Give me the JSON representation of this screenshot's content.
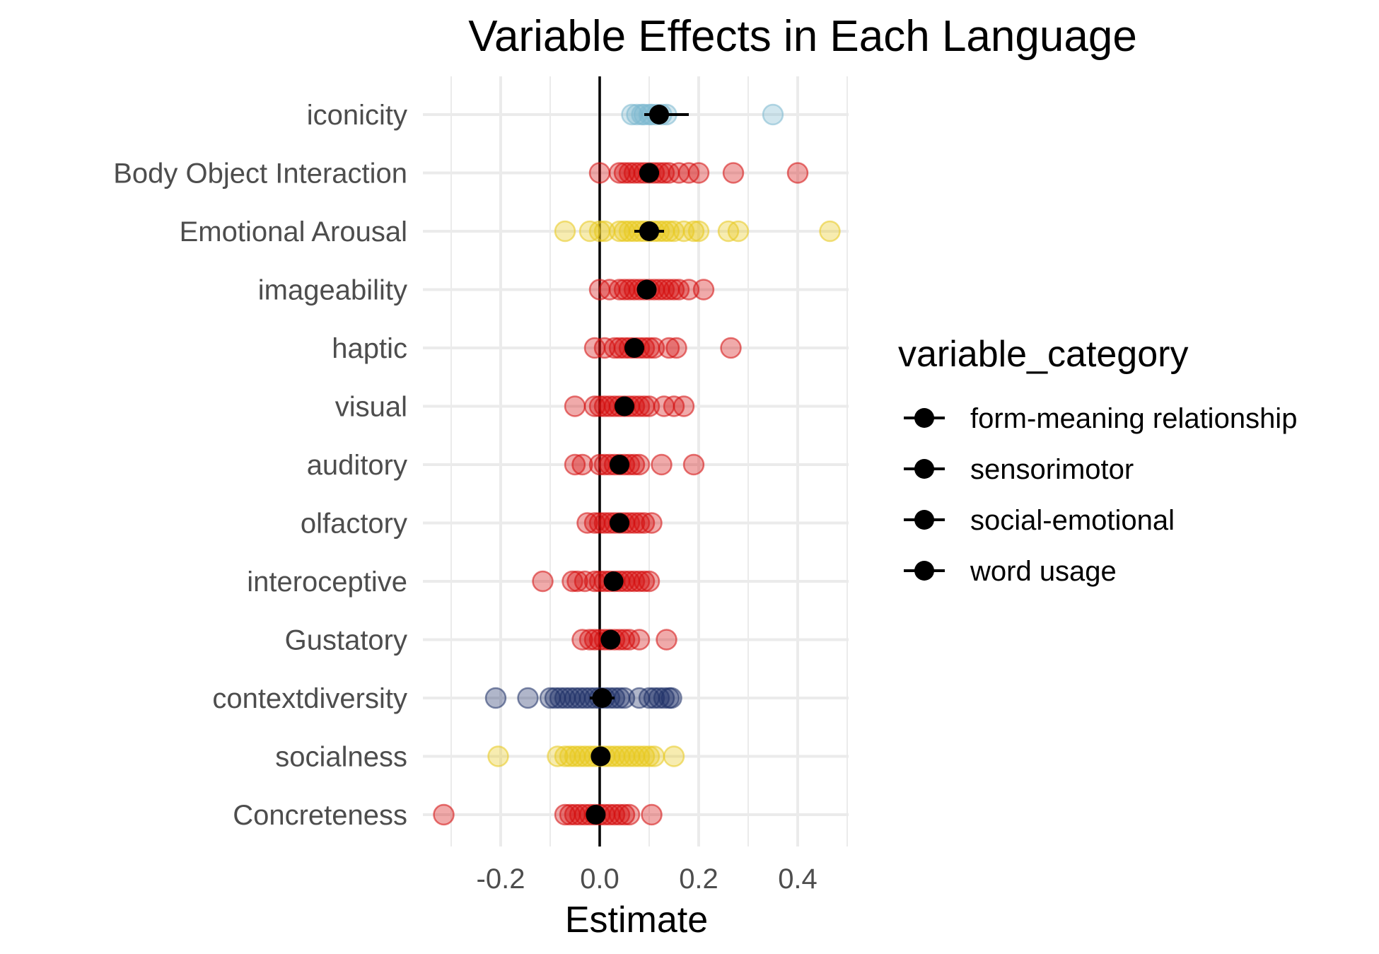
{
  "chart_data": {
    "type": "scatter",
    "title": "Variable Effects in Each Language",
    "xlabel": "Estimate",
    "ylabel": "",
    "xlim": [
      -0.34,
      0.5
    ],
    "x_ticks": [
      -0.2,
      0.0,
      0.2,
      0.4
    ],
    "x_tick_labels": [
      "-0.2",
      "0.0",
      "0.2",
      "0.4"
    ],
    "grid": true,
    "reference_line_x": 0,
    "legend": {
      "title": "variable_category",
      "placement": "right",
      "entries": [
        "form-meaning relationship",
        "sensorimotor",
        "social-emotional",
        "word usage"
      ]
    },
    "category_colors": {
      "form-meaning relationship": "#7bb8cf",
      "sensorimotor": "#d40b0b",
      "social-emotional": "#e8c91c",
      "word usage": "#1e2f66"
    },
    "summary_color": "#000000",
    "variables": [
      {
        "name": "iconicity",
        "category": "form-meaning relationship",
        "estimate": 0.12,
        "ci": [
          0.09,
          0.18
        ],
        "points": [
          0.065,
          0.075,
          0.085,
          0.09,
          0.1,
          0.105,
          0.115,
          0.125,
          0.135,
          0.35
        ]
      },
      {
        "name": "Body Object Interaction",
        "category": "sensorimotor",
        "estimate": 0.1,
        "ci": [
          0.08,
          0.12
        ],
        "points": [
          0.0,
          0.04,
          0.05,
          0.06,
          0.07,
          0.08,
          0.09,
          0.1,
          0.11,
          0.12,
          0.13,
          0.14,
          0.16,
          0.18,
          0.2,
          0.27,
          0.4
        ]
      },
      {
        "name": "Emotional Arousal",
        "category": "social-emotional",
        "estimate": 0.1,
        "ci": [
          0.07,
          0.13
        ],
        "points": [
          -0.07,
          -0.02,
          0.0,
          0.01,
          0.04,
          0.05,
          0.06,
          0.07,
          0.08,
          0.09,
          0.1,
          0.11,
          0.12,
          0.13,
          0.14,
          0.15,
          0.17,
          0.19,
          0.2,
          0.26,
          0.28,
          0.465
        ]
      },
      {
        "name": "imageability",
        "category": "sensorimotor",
        "estimate": 0.095,
        "ci": [
          0.08,
          0.11
        ],
        "points": [
          0.0,
          0.02,
          0.04,
          0.05,
          0.06,
          0.07,
          0.08,
          0.09,
          0.1,
          0.11,
          0.12,
          0.13,
          0.14,
          0.15,
          0.16,
          0.18,
          0.21
        ]
      },
      {
        "name": "haptic",
        "category": "sensorimotor",
        "estimate": 0.07,
        "ci": [
          0.055,
          0.09
        ],
        "points": [
          -0.01,
          0.01,
          0.03,
          0.04,
          0.05,
          0.06,
          0.07,
          0.08,
          0.09,
          0.1,
          0.11,
          0.14,
          0.155,
          0.265
        ]
      },
      {
        "name": "visual",
        "category": "sensorimotor",
        "estimate": 0.05,
        "ci": [
          0.035,
          0.065
        ],
        "points": [
          -0.05,
          -0.01,
          0.0,
          0.01,
          0.02,
          0.03,
          0.04,
          0.05,
          0.06,
          0.07,
          0.08,
          0.09,
          0.1,
          0.13,
          0.15,
          0.17
        ]
      },
      {
        "name": "auditory",
        "category": "sensorimotor",
        "estimate": 0.04,
        "ci": [
          0.025,
          0.055
        ],
        "points": [
          -0.05,
          -0.035,
          0.0,
          0.01,
          0.02,
          0.03,
          0.04,
          0.05,
          0.06,
          0.07,
          0.08,
          0.125,
          0.19
        ]
      },
      {
        "name": "olfactory",
        "category": "sensorimotor",
        "estimate": 0.04,
        "ci": [
          0.025,
          0.055
        ],
        "points": [
          -0.025,
          -0.01,
          0.0,
          0.01,
          0.02,
          0.03,
          0.04,
          0.05,
          0.06,
          0.07,
          0.08,
          0.09,
          0.105
        ]
      },
      {
        "name": "interoceptive",
        "category": "sensorimotor",
        "estimate": 0.028,
        "ci": [
          0.012,
          0.044
        ],
        "points": [
          -0.115,
          -0.055,
          -0.045,
          -0.03,
          -0.01,
          0.0,
          0.01,
          0.02,
          0.03,
          0.04,
          0.05,
          0.06,
          0.07,
          0.08,
          0.09,
          0.1
        ]
      },
      {
        "name": "Gustatory",
        "category": "sensorimotor",
        "estimate": 0.022,
        "ci": [
          0.008,
          0.036
        ],
        "points": [
          -0.035,
          -0.02,
          -0.01,
          0.0,
          0.01,
          0.02,
          0.03,
          0.04,
          0.05,
          0.06,
          0.08,
          0.135
        ]
      },
      {
        "name": "contextdiversity",
        "category": "word usage",
        "estimate": 0.005,
        "ci": [
          -0.02,
          0.03
        ],
        "points": [
          -0.21,
          -0.145,
          -0.1,
          -0.09,
          -0.08,
          -0.07,
          -0.06,
          -0.05,
          -0.04,
          -0.03,
          -0.02,
          -0.01,
          0.0,
          0.01,
          0.02,
          0.03,
          0.04,
          0.05,
          0.08,
          0.1,
          0.11,
          0.12,
          0.13,
          0.14,
          0.145
        ]
      },
      {
        "name": "socialness",
        "category": "social-emotional",
        "estimate": 0.002,
        "ci": [
          -0.012,
          0.016
        ],
        "points": [
          -0.205,
          -0.085,
          -0.07,
          -0.06,
          -0.05,
          -0.04,
          -0.03,
          -0.02,
          -0.01,
          0.0,
          0.01,
          0.02,
          0.03,
          0.04,
          0.05,
          0.06,
          0.07,
          0.08,
          0.09,
          0.1,
          0.11,
          0.15
        ]
      },
      {
        "name": "Concreteness",
        "category": "sensorimotor",
        "estimate": -0.008,
        "ci": [
          -0.022,
          0.006
        ],
        "points": [
          -0.315,
          -0.07,
          -0.06,
          -0.05,
          -0.04,
          -0.03,
          -0.02,
          -0.01,
          0.0,
          0.01,
          0.02,
          0.03,
          0.04,
          0.05,
          0.06,
          0.105
        ]
      }
    ]
  }
}
